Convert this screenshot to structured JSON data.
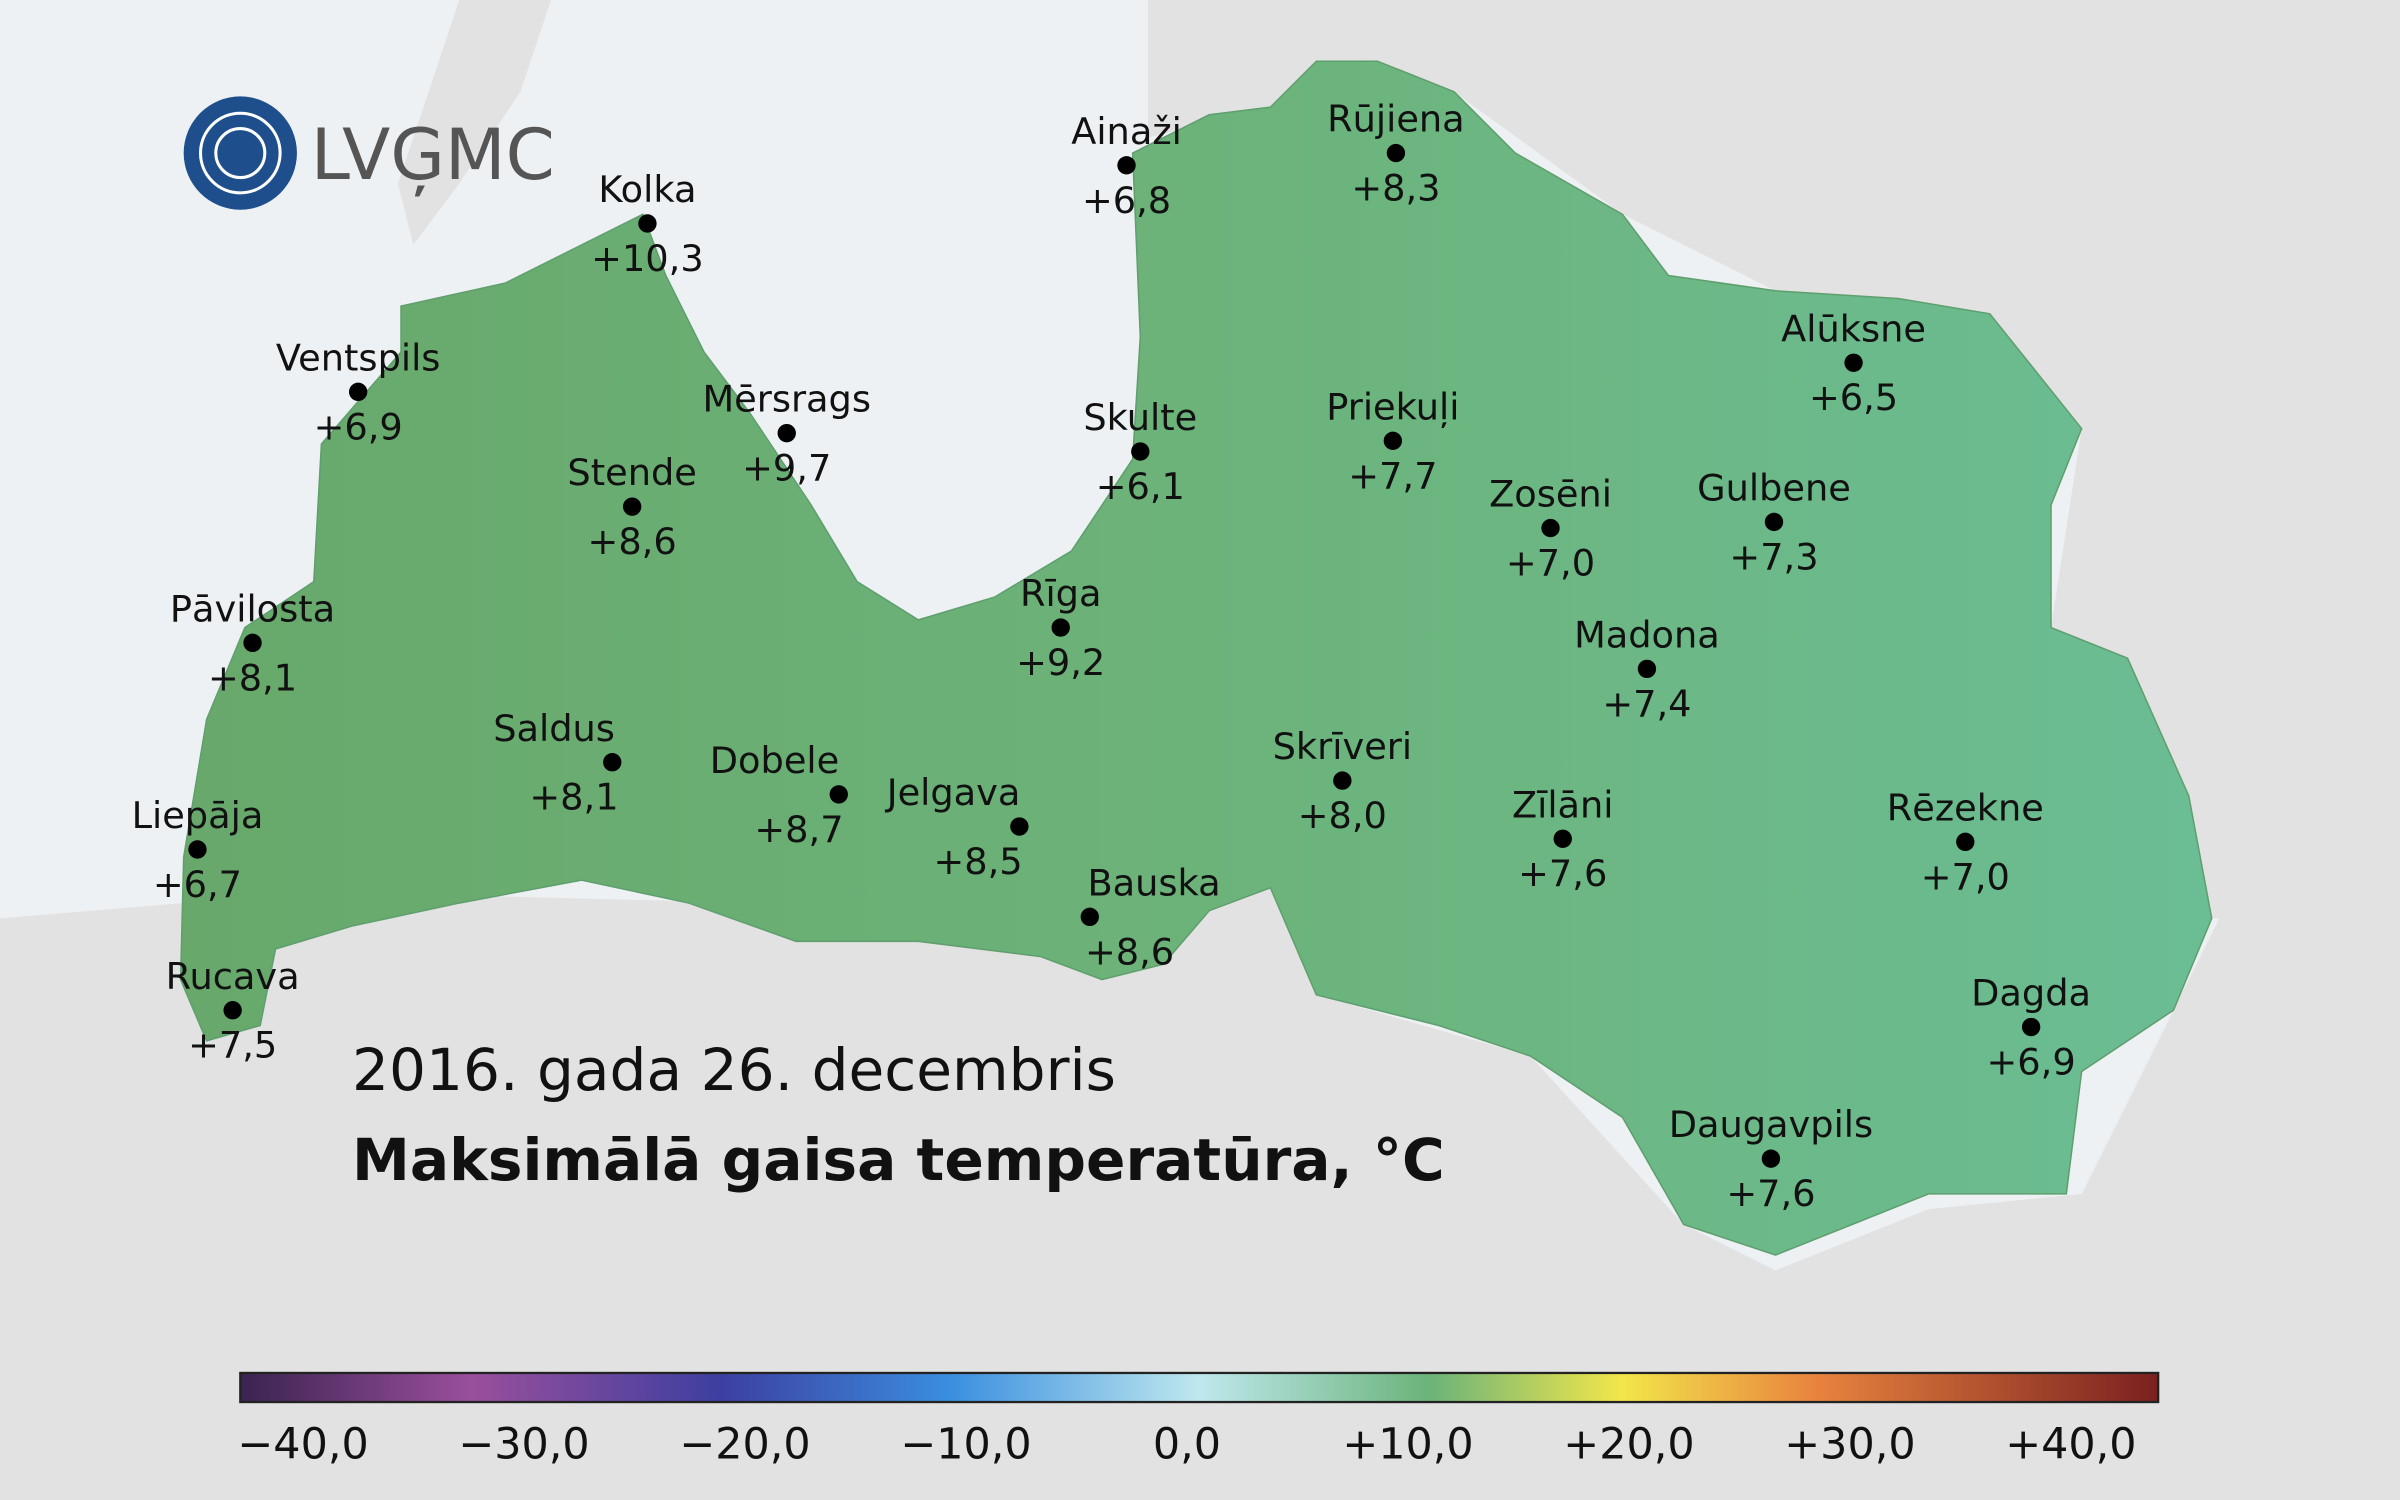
{
  "logo": {
    "text": "LVĢMC"
  },
  "header": {
    "date": "2016. gada 26. decembris",
    "title": "Maksimālā gaisa temperatūra, °C"
  },
  "stations": [
    {
      "name": "Ainaži",
      "value": "+6,8"
    },
    {
      "name": "Rūjiena",
      "value": "+8,3"
    },
    {
      "name": "Kolka",
      "value": "+10,3"
    },
    {
      "name": "Ventspils",
      "value": "+6,9"
    },
    {
      "name": "Mērsrags",
      "value": "+9,7"
    },
    {
      "name": "Stende",
      "value": "+8,6"
    },
    {
      "name": "Skulte",
      "value": "+6,1"
    },
    {
      "name": "Priekuļi",
      "value": "+7,7"
    },
    {
      "name": "Alūksne",
      "value": "+6,5"
    },
    {
      "name": "Zosēni",
      "value": "+7,0"
    },
    {
      "name": "Gulbene",
      "value": "+7,3"
    },
    {
      "name": "Pāvilosta",
      "value": "+8,1"
    },
    {
      "name": "Rīga",
      "value": "+9,2"
    },
    {
      "name": "Madona",
      "value": "+7,4"
    },
    {
      "name": "Saldus",
      "value": "+8,1"
    },
    {
      "name": "Dobele",
      "value": "+8,7"
    },
    {
      "name": "Jelgava",
      "value": "+8,5"
    },
    {
      "name": "Skrīveri",
      "value": "+8,0"
    },
    {
      "name": "Zīlāni",
      "value": "+7,6"
    },
    {
      "name": "Rēzekne",
      "value": "+7,0"
    },
    {
      "name": "Liepāja",
      "value": "+6,7"
    },
    {
      "name": "Bauska",
      "value": "+8,6"
    },
    {
      "name": "Dagda",
      "value": "+6,9"
    },
    {
      "name": "Rucava",
      "value": "+7,5"
    },
    {
      "name": "Daugavpils",
      "value": "+7,6"
    }
  ],
  "colorbar": {
    "ticks": [
      "−40,0",
      "−30,0",
      "−20,0",
      "−10,0",
      "0,0",
      "+10,0",
      "+20,0",
      "+30,0",
      "+40,0"
    ]
  }
}
